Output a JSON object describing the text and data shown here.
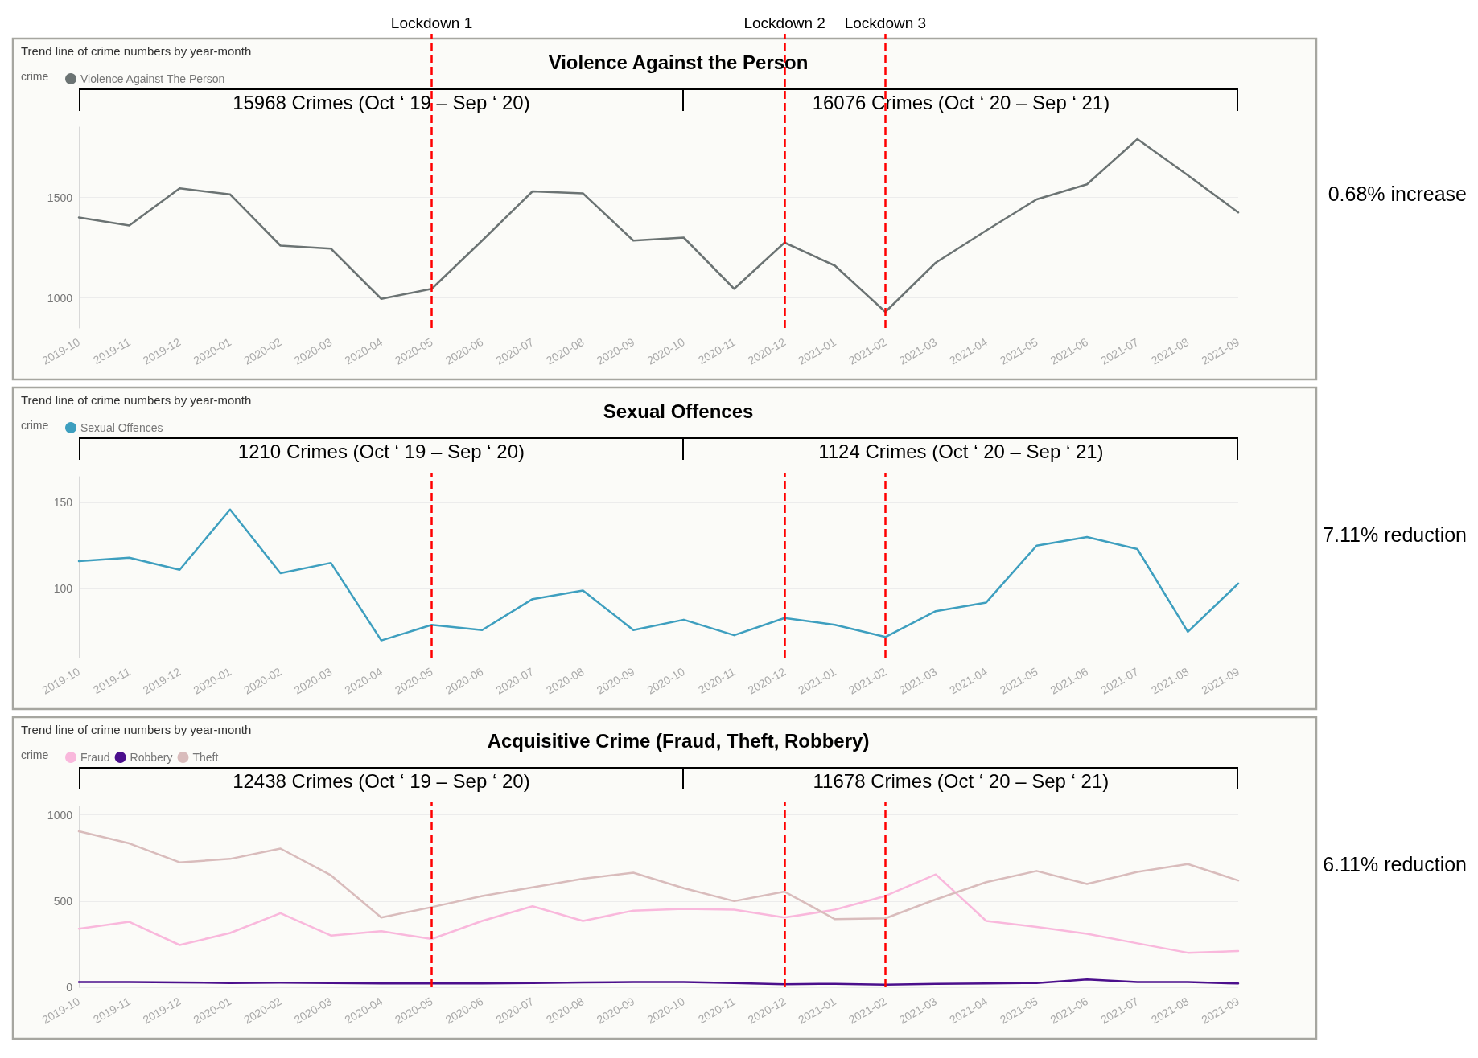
{
  "chart_data": [
    {
      "type": "line",
      "title": "Violence Against the Person",
      "legend_title": "crime",
      "legend": "top left",
      "grid": "y",
      "line_style": "solid",
      "annotations": [
        "Trend line of crime numbers by year-month",
        "15968 Crimes (Oct ‘ 19 – Sep ‘ 20)",
        "16076 Crimes (Oct ‘ 20 – Sep ‘ 21)",
        "0.68% increase"
      ],
      "categories": [
        "2019-10",
        "2019-11",
        "2019-12",
        "2020-01",
        "2020-02",
        "2020-03",
        "2020-04",
        "2020-05",
        "2020-06",
        "2020-07",
        "2020-08",
        "2020-09",
        "2020-10",
        "2020-11",
        "2020-12",
        "2021-01",
        "2021-02",
        "2021-03",
        "2021-04",
        "2021-05",
        "2021-06",
        "2021-07",
        "2021-08",
        "2021-09"
      ],
      "ylim": [
        850,
        1850
      ],
      "yticks": [
        1000,
        1500
      ],
      "series": [
        {
          "name": "Violence Against The Person",
          "color": "#6b7373",
          "values": [
            1400,
            1360,
            1545,
            1515,
            1260,
            1245,
            995,
            1045,
            1285,
            1530,
            1520,
            1285,
            1300,
            1045,
            1275,
            1160,
            930,
            1175,
            1335,
            1490,
            1565,
            1790,
            1610,
            1425
          ]
        }
      ],
      "ref_lines": [
        {
          "axis": "x",
          "value": "2020-05",
          "label": "Lockdown 1",
          "color": "#ff0000",
          "line_style": "dashed"
        },
        {
          "axis": "x",
          "value": "2020-12",
          "label": "Lockdown 2",
          "color": "#ff0000",
          "line_style": "dashed"
        },
        {
          "axis": "x",
          "value": "2021-02",
          "label": "Lockdown 3",
          "color": "#ff0000",
          "line_style": "dashed"
        }
      ]
    },
    {
      "type": "line",
      "title": "Sexual Offences",
      "legend_title": "crime",
      "legend": "top left",
      "grid": "y",
      "line_style": "solid",
      "annotations": [
        "Trend line of crime numbers by year-month",
        "1210 Crimes (Oct ‘ 19 – Sep ‘ 20)",
        "1124 Crimes (Oct ‘ 20 – Sep ‘ 21)",
        "7.11% reduction"
      ],
      "categories": [
        "2019-10",
        "2019-11",
        "2019-12",
        "2020-01",
        "2020-02",
        "2020-03",
        "2020-04",
        "2020-05",
        "2020-06",
        "2020-07",
        "2020-08",
        "2020-09",
        "2020-10",
        "2020-11",
        "2020-12",
        "2021-01",
        "2021-02",
        "2021-03",
        "2021-04",
        "2021-05",
        "2021-06",
        "2021-07",
        "2021-08",
        "2021-09"
      ],
      "ylim": [
        60,
        165
      ],
      "yticks": [
        100,
        150
      ],
      "series": [
        {
          "name": "Sexual Offences",
          "color": "#3e9fbf",
          "values": [
            116,
            118,
            111,
            146,
            109,
            115,
            70,
            79,
            76,
            94,
            99,
            76,
            82,
            73,
            83,
            79,
            72,
            87,
            92,
            125,
            130,
            123,
            75,
            103
          ]
        }
      ],
      "ref_lines": [
        {
          "axis": "x",
          "value": "2020-05",
          "label": null,
          "color": "#ff0000",
          "line_style": "dashed"
        },
        {
          "axis": "x",
          "value": "2020-12",
          "label": null,
          "color": "#ff0000",
          "line_style": "dashed"
        },
        {
          "axis": "x",
          "value": "2021-02",
          "label": null,
          "color": "#ff0000",
          "line_style": "dashed"
        }
      ]
    },
    {
      "type": "line",
      "title": "Acquisitive Crime (Fraud, Theft, Robbery)",
      "legend_title": "crime",
      "legend": "top left",
      "grid": "y",
      "line_style": "solid",
      "annotations": [
        "Trend line of crime numbers by year-month",
        "12438 Crimes (Oct ‘ 19 – Sep ‘ 20)",
        "11678 Crimes (Oct ‘ 20 – Sep ‘ 21)",
        "6.11% reduction"
      ],
      "categories": [
        "2019-10",
        "2019-11",
        "2019-12",
        "2020-01",
        "2020-02",
        "2020-03",
        "2020-04",
        "2020-05",
        "2020-06",
        "2020-07",
        "2020-08",
        "2020-09",
        "2020-10",
        "2020-11",
        "2020-12",
        "2021-01",
        "2021-02",
        "2021-03",
        "2021-04",
        "2021-05",
        "2021-06",
        "2021-07",
        "2021-08",
        "2021-09"
      ],
      "ylim": [
        0,
        1050
      ],
      "yticks": [
        0,
        500,
        1000
      ],
      "series": [
        {
          "name": "Fraud",
          "color": "#f9b8dc",
          "values": [
            340,
            380,
            245,
            315,
            430,
            300,
            325,
            280,
            385,
            470,
            385,
            445,
            455,
            450,
            405,
            450,
            530,
            655,
            385,
            350,
            310,
            255,
            200,
            210
          ]
        },
        {
          "name": "Robbery",
          "color": "#4b0f8c",
          "values": [
            30,
            30,
            28,
            25,
            27,
            25,
            22,
            22,
            22,
            25,
            28,
            30,
            30,
            25,
            18,
            20,
            15,
            20,
            22,
            25,
            45,
            30,
            30,
            22
          ]
        },
        {
          "name": "Theft",
          "color": "#d9bcbc",
          "values": [
            905,
            835,
            725,
            745,
            805,
            650,
            405,
            465,
            530,
            580,
            630,
            665,
            575,
            500,
            555,
            395,
            400,
            510,
            610,
            675,
            600,
            670,
            715,
            620
          ]
        }
      ],
      "ref_lines": [
        {
          "axis": "x",
          "value": "2020-05",
          "label": null,
          "color": "#ff0000",
          "line_style": "dashed"
        },
        {
          "axis": "x",
          "value": "2020-12",
          "label": null,
          "color": "#ff0000",
          "line_style": "dashed"
        },
        {
          "axis": "x",
          "value": "2021-02",
          "label": null,
          "color": "#ff0000",
          "line_style": "dashed"
        }
      ]
    }
  ]
}
